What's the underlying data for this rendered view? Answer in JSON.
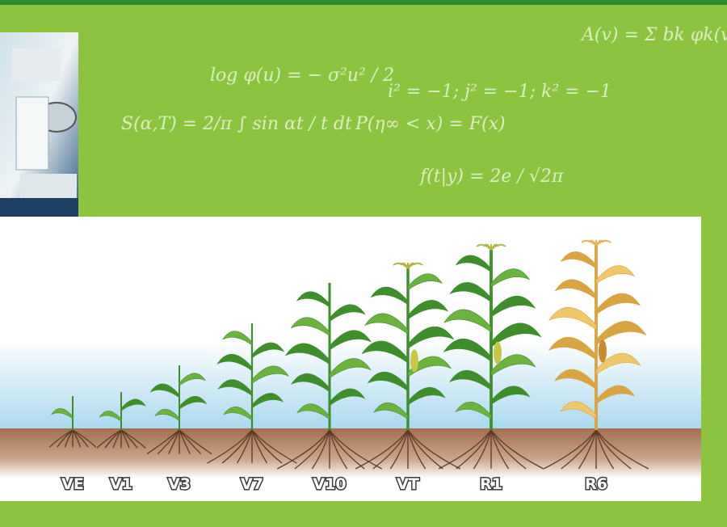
{
  "stages": [
    {
      "label": "VE"
    },
    {
      "label": "V1"
    },
    {
      "label": "V3"
    },
    {
      "label": "V7"
    },
    {
      "label": "V10"
    },
    {
      "label": "VT"
    },
    {
      "label": "R1"
    },
    {
      "label": "R6"
    }
  ],
  "formulas": [
    "log φ(u) = − σ²u² / 2",
    "S(α,T) = 2/π ∫ sin αt / t dt",
    "P(η∞ < x) = F(x)",
    "i² = −1; j² = −1; k² = −1",
    "A(v) = Σ bk φk(v)",
    "f(t|y) = 2e / √2π"
  ]
}
